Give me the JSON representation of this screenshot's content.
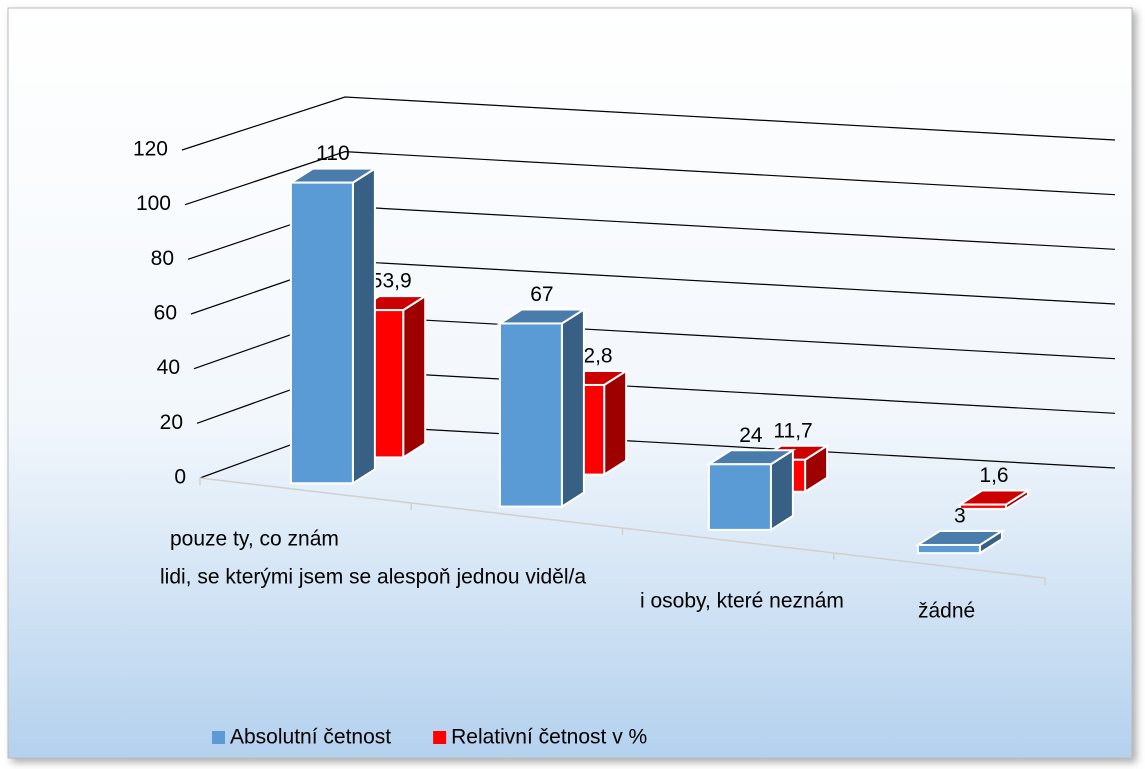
{
  "chart_data": {
    "type": "bar3d",
    "categories": [
      "pouze ty, co znám",
      "lidi, se kterými jsem se alespoň jednou viděl/a",
      "i osoby, které neznám",
      "žádné"
    ],
    "series": [
      {
        "name": "Absolutní četnost",
        "color": "#5b9bd5",
        "values": [
          110,
          67,
          24,
          3
        ]
      },
      {
        "name": "Relativní četnost v %",
        "color": "#ff0000",
        "values": [
          53.9,
          32.8,
          11.7,
          1.6
        ],
        "value_labels": [
          "53,9",
          "32,8",
          "11,7",
          "1,6"
        ]
      }
    ],
    "ylim": [
      0,
      120
    ],
    "yticks": [
      0,
      20,
      40,
      60,
      80,
      100,
      120
    ],
    "grid": true,
    "legend": "bottom"
  }
}
